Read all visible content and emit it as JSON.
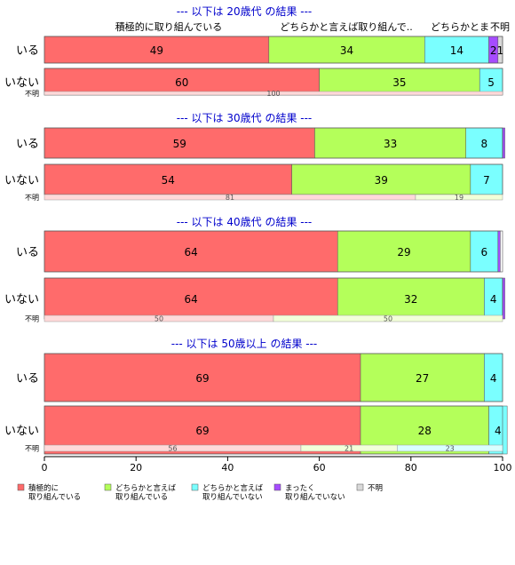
{
  "chart_data": {
    "type": "bar",
    "orientation": "horizontal",
    "stacked": true,
    "xlim": [
      0,
      100
    ],
    "x_ticks": [
      "0",
      "20",
      "40",
      "60",
      "80",
      "100"
    ],
    "grid": false,
    "legend_position": "bottom",
    "category_header_labels": [
      "積極的に取り組んでいる",
      "どちらかと言えば取り組んで..",
      "どちらかと言えば取り組んでいない(省略表示)",
      "まったく取り組んでいない",
      "不明"
    ],
    "header_texts": [
      "積極的に取り組んでいる",
      "どちらかと言えば取り組んで..",
      "どちらかとま",
      "不明"
    ],
    "legend": [
      {
        "label_lines": [
          "積極的に",
          "取り組んでいる"
        ],
        "color": "#ff6b6b"
      },
      {
        "label_lines": [
          "どちらかと言えば",
          "取り組んでいる"
        ],
        "color": "#b4ff5a"
      },
      {
        "label_lines": [
          "どちらかと言えば",
          "取り組んでいない"
        ],
        "color": "#7affff"
      },
      {
        "label_lines": [
          "まったく",
          "取り組んでいない"
        ],
        "color": "#a64cff"
      },
      {
        "label_lines": [
          "不明"
        ],
        "color": "#d9d9d9"
      }
    ],
    "unknown_colors": [
      "#ffd9d9",
      "#f2ffd9",
      "#d9ffff"
    ],
    "panels": [
      {
        "title": "--- 以下は 20歳代 の結果 ---",
        "rows": [
          {
            "label": "いる",
            "values": [
              49,
              34,
              14,
              2,
              1
            ],
            "labels": [
              "49",
              "34",
              "14",
              "2",
              "1"
            ]
          },
          {
            "label": "いない",
            "values": [
              60,
              35,
              5,
              0,
              0
            ],
            "labels": [
              "60",
              "35",
              "5",
              "",
              ""
            ]
          }
        ],
        "unknown": {
          "label": "不明",
          "values": [
            100,
            0,
            0
          ],
          "labels": [
            "100",
            "",
            ""
          ]
        }
      },
      {
        "title": "--- 以下は 30歳代 の結果 ---",
        "rows": [
          {
            "label": "いる",
            "values": [
              59,
              33,
              8,
              0.5,
              0
            ],
            "labels": [
              "59",
              "33",
              "8",
              "",
              ""
            ]
          },
          {
            "label": "いない",
            "values": [
              54,
              39,
              7,
              0,
              0
            ],
            "labels": [
              "54",
              "39",
              "7",
              "",
              ""
            ]
          }
        ],
        "unknown": {
          "label": "不明",
          "values": [
            81,
            19,
            0
          ],
          "labels": [
            "81",
            "19",
            ""
          ]
        }
      },
      {
        "title": "--- 以下は 40歳代 の結果 ---",
        "rows": [
          {
            "label": "いる",
            "values": [
              64,
              29,
              6,
              0.5,
              0
            ],
            "labels": [
              "64",
              "29",
              "6",
              "",
              ""
            ]
          },
          {
            "label": "いない",
            "values": [
              64,
              32,
              4,
              0.5,
              0
            ],
            "labels": [
              "64",
              "32",
              "4",
              "",
              ""
            ]
          }
        ],
        "unknown": {
          "label": "不明",
          "values": [
            50,
            50,
            0
          ],
          "labels": [
            "50",
            "50",
            ""
          ]
        }
      },
      {
        "title": "--- 以下は 50歳以上 の結果 ---",
        "rows": [
          {
            "label": "いる",
            "values": [
              69,
              27,
              4,
              0,
              0
            ],
            "labels": [
              "69",
              "27",
              "4",
              "",
              ""
            ]
          },
          {
            "label": "いない",
            "values": [
              69,
              28,
              4,
              0,
              0
            ],
            "labels": [
              "69",
              "28",
              "4",
              "",
              ""
            ]
          }
        ],
        "unknown": {
          "label": "不明",
          "values": [
            56,
            21,
            23
          ],
          "labels": [
            "56",
            "21",
            "23"
          ]
        }
      }
    ]
  }
}
